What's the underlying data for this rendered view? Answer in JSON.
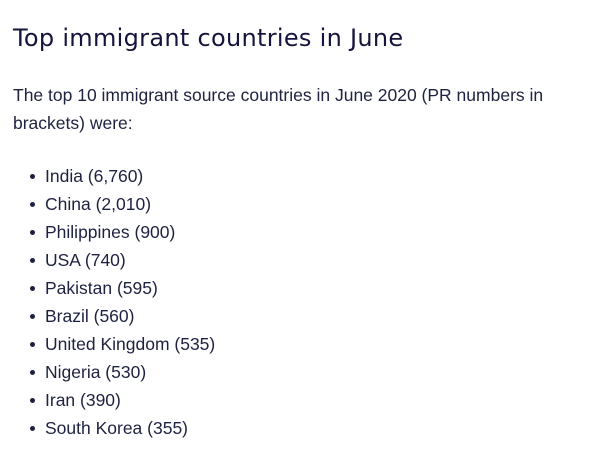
{
  "heading": "Top immigrant countries in June",
  "intro": "The top 10 immigrant source countries in June 2020 (PR numbers in brackets) were:",
  "countries": [
    "India (6,760)",
    "China (2,010)",
    "Philippines (900)",
    "USA (740)",
    "Pakistan (595)",
    "Brazil (560)",
    "United Kingdom (535)",
    "Nigeria (530)",
    "Iran (390)",
    "South Korea (355)"
  ]
}
